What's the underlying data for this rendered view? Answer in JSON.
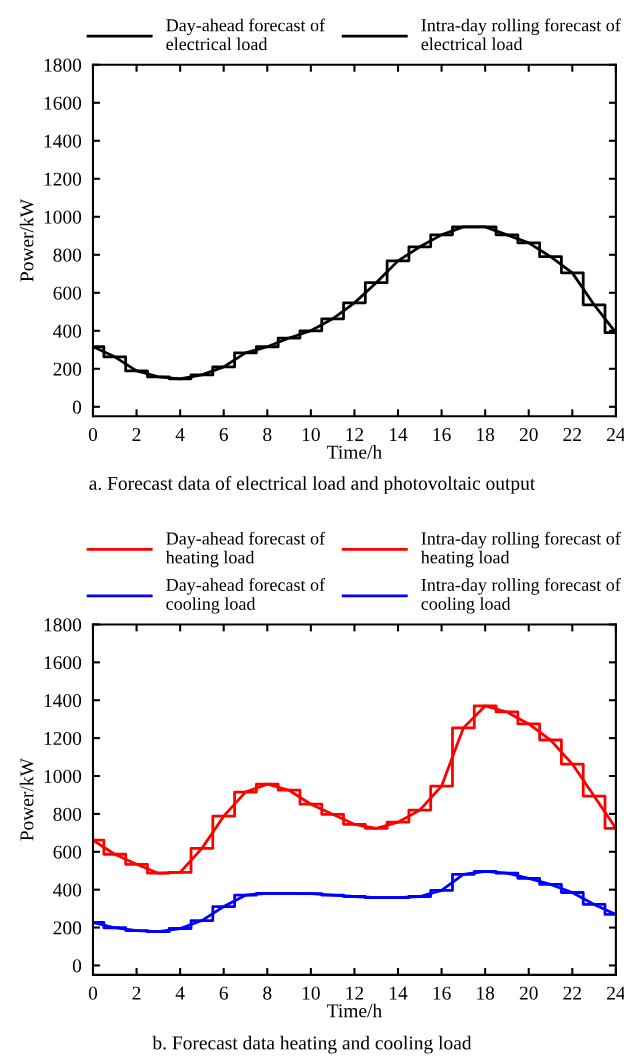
{
  "chart_data": [
    {
      "type": "line",
      "annotations": [
        "a. Forecast data of electrical load and photovoltaic output"
      ],
      "xlabel": "Time/h",
      "ylabel": "Power/kW",
      "x": [
        0,
        1,
        2,
        3,
        4,
        5,
        6,
        7,
        8,
        9,
        10,
        11,
        12,
        13,
        14,
        15,
        16,
        17,
        18,
        19,
        20,
        21,
        22,
        23,
        24
      ],
      "xlim": [
        0,
        24
      ],
      "xticks": [
        0,
        2,
        4,
        6,
        8,
        10,
        12,
        14,
        16,
        18,
        20,
        22,
        24
      ],
      "ylim": [
        -50,
        1800
      ],
      "yticks": [
        0,
        200,
        400,
        600,
        800,
        1000,
        1200,
        1400,
        1600,
        1800
      ],
      "grid": false,
      "legend": "top",
      "series": [
        {
          "name": "Day-ahead forecast of\nelectrical load",
          "color": "#000000",
          "values": [
            316,
            263,
            189,
            158,
            147,
            168,
            210,
            284,
            316,
            362,
            400,
            463,
            547,
            653,
            768,
            842,
            905,
            947,
            947,
            905,
            863,
            790,
            705,
            537,
            390
          ]
        },
        {
          "name": "Intra-day rolling forecast of\nelectrical load",
          "type": "step",
          "color": "#000000",
          "values": [
            316,
            263,
            189,
            158,
            147,
            168,
            210,
            284,
            316,
            362,
            400,
            463,
            547,
            653,
            768,
            842,
            905,
            947,
            947,
            905,
            863,
            790,
            705,
            537,
            390
          ]
        }
      ]
    },
    {
      "type": "line",
      "annotations": [
        "b. Forecast data heating and cooling load"
      ],
      "xlabel": "Time/h",
      "ylabel": "Power/kW",
      "x": [
        0,
        1,
        2,
        3,
        4,
        5,
        6,
        7,
        8,
        9,
        10,
        11,
        12,
        13,
        14,
        15,
        16,
        17,
        18,
        19,
        20,
        21,
        22,
        23,
        24
      ],
      "xlim": [
        0,
        24
      ],
      "xticks": [
        0,
        2,
        4,
        6,
        8,
        10,
        12,
        14,
        16,
        18,
        20,
        22,
        24
      ],
      "ylim": [
        -50,
        1800
      ],
      "yticks": [
        0,
        200,
        400,
        600,
        800,
        1000,
        1200,
        1400,
        1600,
        1800
      ],
      "grid": false,
      "legend": "top",
      "series": [
        {
          "name": "Day-ahead forecast of\nheating load",
          "color": "#ff0000",
          "values": [
            661,
            587,
            534,
            487,
            491,
            618,
            788,
            915,
            957,
            925,
            851,
            798,
            745,
            724,
            756,
            820,
            947,
            1254,
            1370,
            1338,
            1275,
            1190,
            1063,
            894,
            724
          ]
        },
        {
          "name": "Day-ahead forecast of\ncooling load",
          "color": "#0000ff",
          "values": [
            227,
            199,
            184,
            178,
            195,
            237,
            311,
            371,
            381,
            381,
            379,
            371,
            364,
            358,
            358,
            364,
            396,
            481,
            496,
            487,
            460,
            428,
            385,
            322,
            269
          ]
        },
        {
          "name": "Intra-day rolling forecast of\nheating load",
          "type": "step",
          "color": "#ff0000",
          "values": [
            661,
            587,
            534,
            487,
            491,
            618,
            788,
            915,
            957,
            925,
            851,
            798,
            745,
            724,
            756,
            820,
            947,
            1254,
            1370,
            1338,
            1275,
            1190,
            1063,
            894,
            724
          ]
        },
        {
          "name": "Intra-day rolling forecast of\ncooling load",
          "type": "step",
          "color": "#0000ff",
          "values": [
            227,
            199,
            184,
            178,
            195,
            237,
            311,
            371,
            381,
            381,
            379,
            371,
            364,
            358,
            358,
            364,
            396,
            481,
            496,
            487,
            460,
            428,
            385,
            322,
            269
          ]
        }
      ]
    }
  ]
}
